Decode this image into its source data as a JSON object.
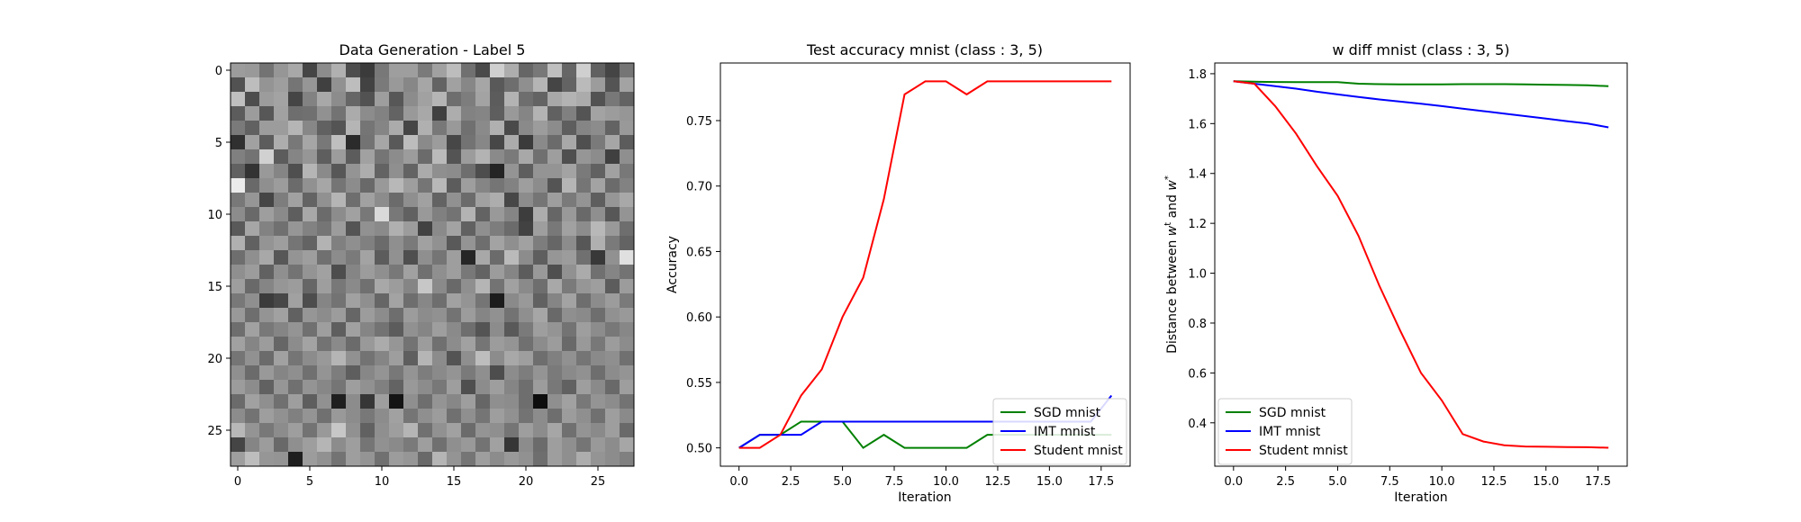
{
  "chart_data": [
    {
      "type": "heatmap",
      "title": "Data Generation - Label 5",
      "xlim": [
        -0.5,
        27.5
      ],
      "ylim": [
        27.5,
        -0.5
      ],
      "xticks": [
        0,
        5,
        10,
        15,
        20,
        25
      ],
      "yticks": [
        0,
        5,
        10,
        15,
        20,
        25
      ],
      "xtick_labels": [
        "0",
        "5",
        "10",
        "15",
        "20",
        "25"
      ],
      "ytick_labels": [
        "0",
        "5",
        "10",
        "15",
        "20",
        "25"
      ],
      "colormap": "gray",
      "rows": 28,
      "cols": 28,
      "values": [
        [
          0.61,
          0.6,
          0.45,
          0.59,
          0.66,
          0.27,
          0.55,
          0.69,
          0.3,
          0.23,
          0.47,
          0.62,
          0.62,
          0.48,
          0.63,
          0.74,
          0.44,
          0.29,
          0.81,
          0.68,
          0.4,
          0.47,
          0.75,
          0.4,
          0.81,
          0.38,
          0.27,
          0.46
        ],
        [
          0.32,
          0.74,
          0.58,
          0.62,
          0.46,
          0.59,
          0.25,
          0.57,
          0.74,
          0.26,
          0.48,
          0.6,
          0.53,
          0.65,
          0.39,
          0.63,
          0.53,
          0.65,
          0.35,
          0.43,
          0.56,
          0.71,
          0.27,
          0.39,
          0.73,
          0.61,
          0.33,
          0.64
        ],
        [
          0.75,
          0.3,
          0.61,
          0.64,
          0.27,
          0.51,
          0.66,
          0.55,
          0.4,
          0.32,
          0.62,
          0.34,
          0.55,
          0.63,
          0.71,
          0.43,
          0.49,
          0.64,
          0.36,
          0.7,
          0.43,
          0.39,
          0.66,
          0.7,
          0.67,
          0.32,
          0.47,
          0.39
        ],
        [
          0.36,
          0.61,
          0.34,
          0.63,
          0.43,
          0.44,
          0.57,
          0.45,
          0.67,
          0.55,
          0.51,
          0.39,
          0.6,
          0.66,
          0.25,
          0.68,
          0.51,
          0.52,
          0.37,
          0.6,
          0.52,
          0.7,
          0.38,
          0.5,
          0.33,
          0.64,
          0.61,
          0.59
        ],
        [
          0.48,
          0.38,
          0.61,
          0.61,
          0.71,
          0.53,
          0.38,
          0.33,
          0.71,
          0.46,
          0.52,
          0.67,
          0.27,
          0.69,
          0.47,
          0.6,
          0.44,
          0.54,
          0.69,
          0.29,
          0.54,
          0.61,
          0.55,
          0.37,
          0.52,
          0.55,
          0.39,
          0.6
        ],
        [
          0.19,
          0.63,
          0.36,
          0.68,
          0.47,
          0.65,
          0.47,
          0.75,
          0.17,
          0.45,
          0.65,
          0.35,
          0.74,
          0.54,
          0.61,
          0.28,
          0.45,
          0.53,
          0.28,
          0.67,
          0.23,
          0.54,
          0.42,
          0.66,
          0.31,
          0.48,
          0.65,
          0.36
        ],
        [
          0.5,
          0.45,
          0.82,
          0.36,
          0.52,
          0.59,
          0.37,
          0.61,
          0.36,
          0.63,
          0.46,
          0.55,
          0.61,
          0.42,
          0.73,
          0.33,
          0.61,
          0.7,
          0.54,
          0.48,
          0.66,
          0.44,
          0.62,
          0.31,
          0.59,
          0.55,
          0.25,
          0.56
        ],
        [
          0.38,
          0.2,
          0.6,
          0.52,
          0.31,
          0.71,
          0.54,
          0.34,
          0.58,
          0.68,
          0.39,
          0.56,
          0.39,
          0.67,
          0.56,
          0.55,
          0.43,
          0.3,
          0.14,
          0.58,
          0.37,
          0.58,
          0.58,
          0.64,
          0.48,
          0.38,
          0.63,
          0.47
        ],
        [
          0.92,
          0.41,
          0.56,
          0.61,
          0.42,
          0.57,
          0.65,
          0.46,
          0.55,
          0.41,
          0.6,
          0.72,
          0.62,
          0.46,
          0.72,
          0.36,
          0.62,
          0.52,
          0.46,
          0.51,
          0.62,
          0.55,
          0.33,
          0.71,
          0.46,
          0.64,
          0.42,
          0.51
        ],
        [
          0.47,
          0.59,
          0.27,
          0.49,
          0.63,
          0.39,
          0.57,
          0.71,
          0.43,
          0.63,
          0.55,
          0.42,
          0.56,
          0.63,
          0.39,
          0.57,
          0.42,
          0.63,
          0.68,
          0.28,
          0.55,
          0.46,
          0.62,
          0.48,
          0.58,
          0.37,
          0.59,
          0.66
        ],
        [
          0.55,
          0.41,
          0.62,
          0.54,
          0.37,
          0.66,
          0.42,
          0.55,
          0.63,
          0.47,
          0.85,
          0.47,
          0.38,
          0.6,
          0.5,
          0.45,
          0.7,
          0.39,
          0.6,
          0.52,
          0.24,
          0.68,
          0.4,
          0.6,
          0.41,
          0.56,
          0.34,
          0.58
        ],
        [
          0.35,
          0.65,
          0.51,
          0.44,
          0.59,
          0.51,
          0.46,
          0.61,
          0.33,
          0.57,
          0.54,
          0.69,
          0.61,
          0.26,
          0.54,
          0.64,
          0.38,
          0.56,
          0.49,
          0.42,
          0.26,
          0.62,
          0.47,
          0.63,
          0.55,
          0.72,
          0.6,
          0.43
        ],
        [
          0.69,
          0.38,
          0.58,
          0.62,
          0.46,
          0.39,
          0.7,
          0.5,
          0.56,
          0.5,
          0.42,
          0.56,
          0.48,
          0.63,
          0.57,
          0.35,
          0.58,
          0.43,
          0.64,
          0.56,
          0.63,
          0.49,
          0.4,
          0.55,
          0.34,
          0.69,
          0.48,
          0.39
        ],
        [
          0.43,
          0.56,
          0.66,
          0.34,
          0.58,
          0.62,
          0.44,
          0.55,
          0.48,
          0.64,
          0.36,
          0.57,
          0.31,
          0.56,
          0.46,
          0.62,
          0.15,
          0.66,
          0.42,
          0.73,
          0.55,
          0.37,
          0.59,
          0.61,
          0.44,
          0.22,
          0.57,
          0.88
        ],
        [
          0.56,
          0.61,
          0.38,
          0.56,
          0.45,
          0.58,
          0.63,
          0.3,
          0.52,
          0.61,
          0.56,
          0.47,
          0.63,
          0.44,
          0.56,
          0.62,
          0.47,
          0.39,
          0.61,
          0.52,
          0.36,
          0.6,
          0.31,
          0.57,
          0.67,
          0.44,
          0.52,
          0.45
        ],
        [
          0.62,
          0.41,
          0.52,
          0.59,
          0.61,
          0.4,
          0.62,
          0.47,
          0.54,
          0.44,
          0.66,
          0.61,
          0.52,
          0.78,
          0.54,
          0.41,
          0.56,
          0.71,
          0.45,
          0.63,
          0.54,
          0.43,
          0.66,
          0.48,
          0.59,
          0.62,
          0.36,
          0.61
        ],
        [
          0.47,
          0.56,
          0.23,
          0.28,
          0.63,
          0.3,
          0.52,
          0.45,
          0.63,
          0.56,
          0.4,
          0.64,
          0.43,
          0.53,
          0.43,
          0.63,
          0.58,
          0.46,
          0.11,
          0.54,
          0.6,
          0.38,
          0.52,
          0.64,
          0.43,
          0.55,
          0.61,
          0.48
        ],
        [
          0.6,
          0.43,
          0.58,
          0.63,
          0.38,
          0.59,
          0.55,
          0.61,
          0.4,
          0.61,
          0.55,
          0.43,
          0.61,
          0.55,
          0.57,
          0.45,
          0.61,
          0.52,
          0.57,
          0.45,
          0.56,
          0.65,
          0.41,
          0.56,
          0.54,
          0.43,
          0.57,
          0.6
        ],
        [
          0.43,
          0.63,
          0.47,
          0.52,
          0.58,
          0.44,
          0.62,
          0.37,
          0.63,
          0.52,
          0.45,
          0.36,
          0.57,
          0.52,
          0.62,
          0.54,
          0.43,
          0.33,
          0.55,
          0.35,
          0.48,
          0.62,
          0.58,
          0.45,
          0.62,
          0.55,
          0.47,
          0.53
        ],
        [
          0.63,
          0.52,
          0.61,
          0.4,
          0.55,
          0.64,
          0.45,
          0.54,
          0.42,
          0.6,
          0.67,
          0.59,
          0.45,
          0.61,
          0.44,
          0.55,
          0.63,
          0.46,
          0.61,
          0.58,
          0.44,
          0.55,
          0.61,
          0.41,
          0.6,
          0.47,
          0.61,
          0.55
        ],
        [
          0.46,
          0.57,
          0.42,
          0.63,
          0.46,
          0.55,
          0.6,
          0.71,
          0.57,
          0.45,
          0.52,
          0.62,
          0.37,
          0.71,
          0.55,
          0.33,
          0.56,
          0.74,
          0.55,
          0.66,
          0.62,
          0.43,
          0.5,
          0.57,
          0.46,
          0.54,
          0.56,
          0.44
        ],
        [
          0.56,
          0.42,
          0.6,
          0.52,
          0.56,
          0.44,
          0.58,
          0.49,
          0.37,
          0.53,
          0.58,
          0.47,
          0.58,
          0.49,
          0.54,
          0.58,
          0.48,
          0.56,
          0.3,
          0.55,
          0.49,
          0.58,
          0.48,
          0.54,
          0.57,
          0.43,
          0.55,
          0.58
        ],
        [
          0.61,
          0.55,
          0.38,
          0.59,
          0.44,
          0.58,
          0.53,
          0.46,
          0.62,
          0.57,
          0.5,
          0.39,
          0.6,
          0.55,
          0.47,
          0.62,
          0.31,
          0.55,
          0.62,
          0.52,
          0.43,
          0.61,
          0.47,
          0.38,
          0.62,
          0.54,
          0.41,
          0.62
        ],
        [
          0.42,
          0.63,
          0.56,
          0.44,
          0.62,
          0.37,
          0.57,
          0.12,
          0.55,
          0.21,
          0.62,
          0.08,
          0.56,
          0.43,
          0.58,
          0.53,
          0.62,
          0.4,
          0.56,
          0.55,
          0.43,
          0.05,
          0.56,
          0.63,
          0.47,
          0.58,
          0.55,
          0.45
        ],
        [
          0.55,
          0.45,
          0.62,
          0.57,
          0.5,
          0.58,
          0.44,
          0.6,
          0.55,
          0.47,
          0.55,
          0.63,
          0.46,
          0.56,
          0.61,
          0.44,
          0.56,
          0.46,
          0.62,
          0.57,
          0.45,
          0.55,
          0.43,
          0.61,
          0.56,
          0.44,
          0.62,
          0.54
        ],
        [
          0.72,
          0.58,
          0.47,
          0.55,
          0.62,
          0.45,
          0.6,
          0.78,
          0.57,
          0.38,
          0.56,
          0.62,
          0.71,
          0.44,
          0.57,
          0.63,
          0.42,
          0.58,
          0.56,
          0.46,
          0.62,
          0.55,
          0.65,
          0.44,
          0.58,
          0.54,
          0.62,
          0.41
        ],
        [
          0.27,
          0.52,
          0.61,
          0.41,
          0.56,
          0.62,
          0.71,
          0.55,
          0.62,
          0.46,
          0.57,
          0.54,
          0.48,
          0.62,
          0.44,
          0.56,
          0.6,
          0.45,
          0.63,
          0.21,
          0.55,
          0.42,
          0.62,
          0.56,
          0.46,
          0.6,
          0.55,
          0.65
        ],
        [
          0.62,
          0.74,
          0.59,
          0.58,
          0.12,
          0.61,
          0.57,
          0.45,
          0.62,
          0.58,
          0.44,
          0.61,
          0.59,
          0.41,
          0.71,
          0.58,
          0.46,
          0.62,
          0.55,
          0.6,
          0.57,
          0.43,
          0.62,
          0.56,
          0.68,
          0.58,
          0.55,
          0.5
        ]
      ]
    },
    {
      "type": "line",
      "title": "Test accuracy mnist (class : 3, 5)",
      "xlabel": "Iteration",
      "ylabel": "Accuracy",
      "xlim": [
        -0.9,
        18.9
      ],
      "ylim": [
        0.486,
        0.794
      ],
      "xticks": [
        0.0,
        2.5,
        5.0,
        7.5,
        10.0,
        12.5,
        15.0,
        17.5
      ],
      "xtick_labels": [
        "0.0",
        "2.5",
        "5.0",
        "7.5",
        "10.0",
        "12.5",
        "15.0",
        "17.5"
      ],
      "yticks": [
        0.5,
        0.55,
        0.6,
        0.65,
        0.7,
        0.75
      ],
      "ytick_labels": [
        "0.50",
        "0.55",
        "0.60",
        "0.65",
        "0.70",
        "0.75"
      ],
      "legend": "lower-right",
      "grid": false,
      "x": [
        0,
        1,
        2,
        3,
        4,
        5,
        6,
        7,
        8,
        9,
        10,
        11,
        12,
        13,
        14,
        15,
        16,
        17,
        18
      ],
      "series": [
        {
          "name": "SGD mnist",
          "color": "#008000",
          "values": [
            0.5,
            0.51,
            0.51,
            0.52,
            0.52,
            0.52,
            0.5,
            0.51,
            0.5,
            0.5,
            0.5,
            0.5,
            0.51,
            0.51,
            0.51,
            0.51,
            0.51,
            0.51,
            0.51
          ]
        },
        {
          "name": "IMT mnist",
          "color": "#0000ff",
          "values": [
            0.5,
            0.51,
            0.51,
            0.51,
            0.52,
            0.52,
            0.52,
            0.52,
            0.52,
            0.52,
            0.52,
            0.52,
            0.52,
            0.52,
            0.52,
            0.52,
            0.52,
            0.52,
            0.54
          ]
        },
        {
          "name": "Student mnist",
          "color": "#ff0000",
          "values": [
            0.5,
            0.5,
            0.51,
            0.54,
            0.56,
            0.6,
            0.63,
            0.69,
            0.77,
            0.78,
            0.78,
            0.77,
            0.78,
            0.78,
            0.78,
            0.78,
            0.78,
            0.78,
            0.78
          ]
        }
      ]
    },
    {
      "type": "line",
      "title": "w diff mnist (class : 3, 5)",
      "xlabel": "Iteration",
      "ylabel": "Distance between w^t and w^*",
      "ylabel_main": "Distance between ",
      "ylabel_w1": "w",
      "ylabel_sup1": "t",
      "ylabel_mid": " and ",
      "ylabel_w2": "w",
      "ylabel_sup2": "*",
      "xlim": [
        -0.9,
        18.9
      ],
      "ylim": [
        0.226,
        1.843
      ],
      "xticks": [
        0.0,
        2.5,
        5.0,
        7.5,
        10.0,
        12.5,
        15.0,
        17.5
      ],
      "xtick_labels": [
        "0.0",
        "2.5",
        "5.0",
        "7.5",
        "10.0",
        "12.5",
        "15.0",
        "17.5"
      ],
      "yticks": [
        0.4,
        0.6,
        0.8,
        1.0,
        1.2,
        1.4,
        1.6,
        1.8
      ],
      "ytick_labels": [
        "0.4",
        "0.6",
        "0.8",
        "1.0",
        "1.2",
        "1.4",
        "1.6",
        "1.8"
      ],
      "legend": "lower-left",
      "grid": false,
      "x": [
        0,
        1,
        2,
        3,
        4,
        5,
        6,
        7,
        8,
        9,
        10,
        11,
        12,
        13,
        14,
        15,
        16,
        17,
        18
      ],
      "series": [
        {
          "name": "SGD mnist",
          "color": "#008000",
          "values": [
            1.77,
            1.768,
            1.767,
            1.766,
            1.766,
            1.766,
            1.76,
            1.758,
            1.757,
            1.757,
            1.757,
            1.758,
            1.758,
            1.758,
            1.757,
            1.756,
            1.755,
            1.754,
            1.75
          ]
        },
        {
          "name": "IMT mnist",
          "color": "#0000ff",
          "values": [
            1.77,
            1.76,
            1.75,
            1.74,
            1.728,
            1.717,
            1.707,
            1.697,
            1.688,
            1.68,
            1.67,
            1.66,
            1.65,
            1.64,
            1.63,
            1.62,
            1.61,
            1.6,
            1.585
          ]
        },
        {
          "name": "Student mnist",
          "color": "#ff0000",
          "values": [
            1.77,
            1.76,
            1.67,
            1.56,
            1.43,
            1.31,
            1.15,
            0.95,
            0.77,
            0.6,
            0.49,
            0.355,
            0.325,
            0.31,
            0.305,
            0.304,
            0.303,
            0.302,
            0.3
          ]
        }
      ]
    }
  ]
}
